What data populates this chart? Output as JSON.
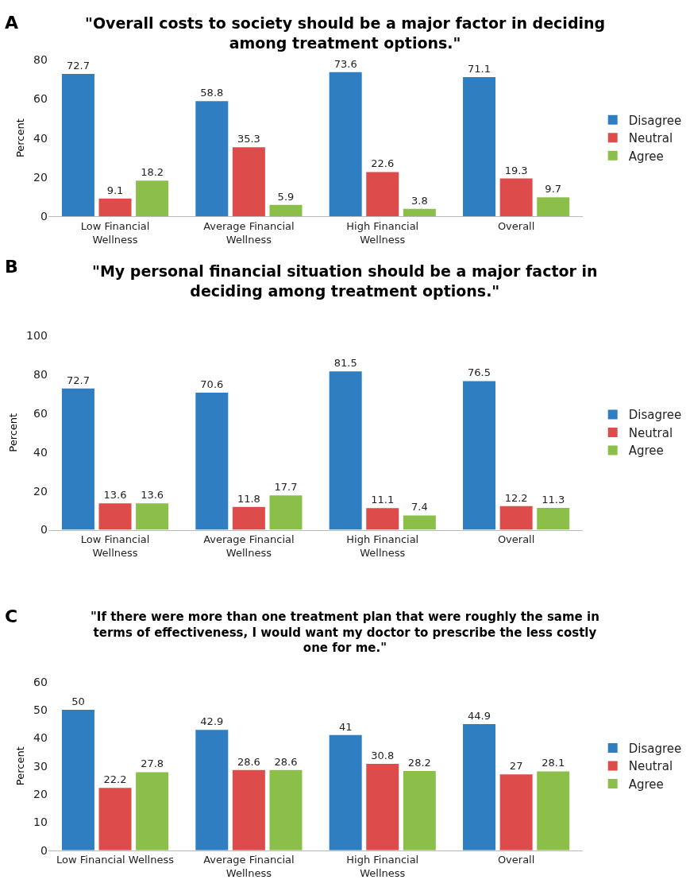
{
  "chart_data": [
    {
      "type": "bar",
      "title": "\"Overall costs to society should be a major factor in deciding among treatment options.\"",
      "ylabel": "Percent",
      "annotations": [
        "A"
      ],
      "categories": [
        "Low Financial Wellness",
        "Average Financial Wellness",
        "High Financial Wellness",
        "Overall"
      ],
      "series": [
        {
          "name": "Disagree",
          "color": "#2e7ec1",
          "values": [
            72.7,
            58.8,
            73.6,
            71.1
          ]
        },
        {
          "name": "Neutral",
          "color": "#de4b4b",
          "values": [
            9.1,
            35.3,
            22.6,
            19.3
          ]
        },
        {
          "name": "Agree",
          "color": "#8cbf4a",
          "values": [
            18.2,
            5.9,
            3.8,
            9.7
          ]
        }
      ],
      "ylim": [
        0,
        80
      ],
      "yticks": [
        0,
        20,
        40,
        60,
        80
      ],
      "data_labels": true,
      "legend": "right",
      "grid": false
    },
    {
      "type": "bar",
      "title": "\"My personal financial situation should be a major factor in deciding among treatment options.\"",
      "ylabel": "Percent",
      "annotations": [
        "B"
      ],
      "categories": [
        "Low Financial Wellness",
        "Average Financial Wellness",
        "High Financial Wellness",
        "Overall"
      ],
      "series": [
        {
          "name": "Disagree",
          "color": "#2e7ec1",
          "values": [
            72.7,
            70.6,
            81.5,
            76.5
          ]
        },
        {
          "name": "Neutral",
          "color": "#de4b4b",
          "values": [
            13.6,
            11.8,
            11.1,
            12.2
          ]
        },
        {
          "name": "Agree",
          "color": "#8cbf4a",
          "values": [
            13.6,
            17.7,
            7.4,
            11.3
          ]
        }
      ],
      "ylim": [
        0,
        100
      ],
      "yticks": [
        0,
        20,
        40,
        60,
        80,
        100
      ],
      "data_labels": true,
      "legend": "right",
      "grid": false
    },
    {
      "type": "bar",
      "title": "\"If there were more than one treatment plan that were roughly the same in terms of effectiveness, I would want my doctor to prescribe the less costly one for me.\"",
      "ylabel": "Percent",
      "annotations": [
        "C"
      ],
      "categories": [
        "Low Financial Wellness",
        "Average Financial Wellness",
        "High Financial Wellness",
        "Overall"
      ],
      "series": [
        {
          "name": "Disagree",
          "color": "#2e7ec1",
          "values": [
            50,
            42.9,
            41,
            44.9
          ]
        },
        {
          "name": "Neutral",
          "color": "#de4b4b",
          "values": [
            22.2,
            28.6,
            30.8,
            27
          ]
        },
        {
          "name": "Agree",
          "color": "#8cbf4a",
          "values": [
            27.8,
            28.6,
            28.2,
            28.1
          ]
        }
      ],
      "ylim": [
        0,
        60
      ],
      "yticks": [
        0,
        10,
        20,
        30,
        40,
        50,
        60
      ],
      "data_labels": true,
      "legend": "right",
      "grid": false
    }
  ]
}
